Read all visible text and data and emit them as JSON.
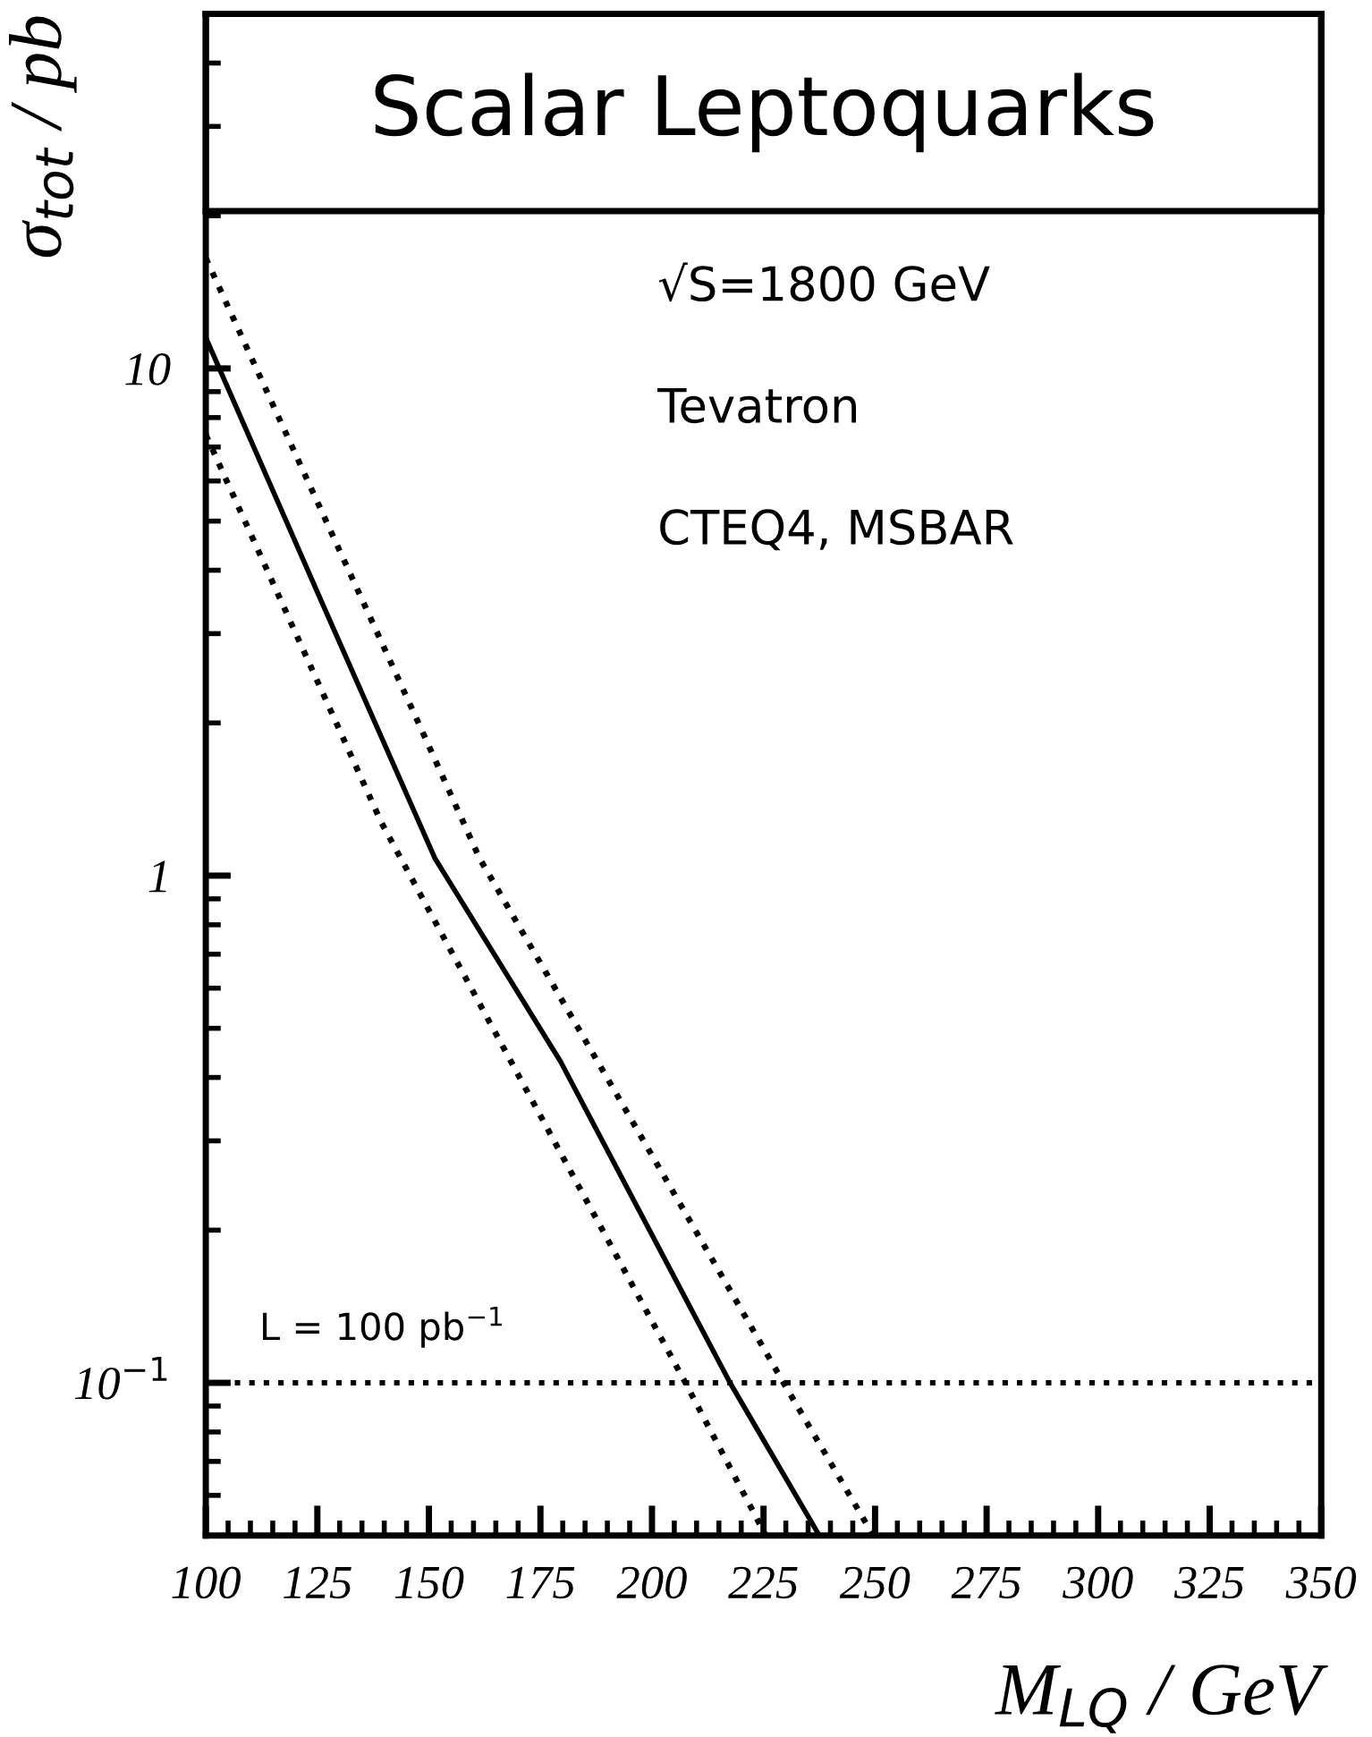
{
  "chart_data": {
    "type": "line",
    "title": "Scalar Leptoquarks",
    "xlabel": "M$_{LQ}$ / GeV",
    "ylabel": "σ$_{tot}$ / pb",
    "log": "y",
    "xlim": [
      100,
      350
    ],
    "ylim": [
      0.05,
      50
    ],
    "xticks": [
      100,
      {
        "value": 105,
        "label": null
      },
      {
        "value": 110,
        "label": null
      },
      {
        "value": 115,
        "label": null
      },
      {
        "value": 120,
        "label": null
      },
      125,
      {
        "value": 130,
        "label": null
      },
      {
        "value": 135,
        "label": null
      },
      {
        "value": 140,
        "label": null
      },
      {
        "value": 145,
        "label": null
      },
      150,
      {
        "value": 155,
        "label": null
      },
      {
        "value": 160,
        "label": null
      },
      {
        "value": 165,
        "label": null
      },
      {
        "value": 170,
        "label": null
      },
      175,
      {
        "value": 180,
        "label": null
      },
      {
        "value": 185,
        "label": null
      },
      {
        "value": 190,
        "label": null
      },
      {
        "value": 195,
        "label": null
      },
      200,
      {
        "value": 205,
        "label": null
      },
      {
        "value": 210,
        "label": null
      },
      {
        "value": 215,
        "label": null
      },
      {
        "value": 220,
        "label": null
      },
      225,
      {
        "value": 230,
        "label": null
      },
      {
        "value": 235,
        "label": null
      },
      {
        "value": 240,
        "label": null
      },
      {
        "value": 245,
        "label": null
      },
      250,
      {
        "value": 255,
        "label": null
      },
      {
        "value": 260,
        "label": null
      },
      {
        "value": 265,
        "label": null
      },
      {
        "value": 270,
        "label": null
      },
      275,
      {
        "value": 280,
        "label": null
      },
      {
        "value": 285,
        "label": null
      },
      {
        "value": 290,
        "label": null
      },
      {
        "value": 295,
        "label": null
      },
      300,
      {
        "value": 305,
        "label": null
      },
      {
        "value": 310,
        "label": null
      },
      {
        "value": 315,
        "label": null
      },
      {
        "value": 320,
        "label": null
      },
      325,
      {
        "value": 330,
        "label": null
      },
      {
        "value": 335,
        "label": null
      },
      {
        "value": 340,
        "label": null
      },
      {
        "value": 345,
        "label": null
      },
      350
    ],
    "yticks": [
      {
        "value": 0.06,
        "label": null
      },
      {
        "value": 0.07,
        "label": null
      },
      {
        "value": 0.08,
        "label": null
      },
      {
        "value": 0.09,
        "label": null
      },
      {
        "value": 0.1,
        "label": "10$^{−1}$"
      },
      {
        "value": 0.2,
        "label": null
      },
      {
        "value": 0.3,
        "label": null
      },
      {
        "value": 0.4,
        "label": null
      },
      {
        "value": 0.5,
        "label": null
      },
      {
        "value": 0.6,
        "label": null
      },
      {
        "value": 0.7,
        "label": null
      },
      {
        "value": 0.8,
        "label": null
      },
      {
        "value": 0.9,
        "label": null
      },
      1,
      {
        "value": 2,
        "label": null
      },
      {
        "value": 3,
        "label": null
      },
      {
        "value": 4,
        "label": null
      },
      {
        "value": 5,
        "label": null
      },
      {
        "value": 6,
        "label": null
      },
      {
        "value": 7,
        "label": null
      },
      {
        "value": 8,
        "label": null
      },
      {
        "value": 9,
        "label": null
      },
      10,
      {
        "value": 20,
        "label": null
      },
      {
        "value": 30,
        "label": null
      },
      {
        "value": 40,
        "label": null
      }
    ],
    "series": [
      {
        "color": "#000000",
        "line_style": "dotted",
        "x": [
          100,
          147,
          161.4,
          195.4,
          229.5,
          249.6
        ],
        "values": [
          16.5,
          2.06,
          1.08,
          0.33,
          0.1,
          0.05
        ]
      },
      {
        "color": "#000000",
        "line_style": "solid",
        "x": [
          100,
          125.5,
          151.4,
          179.5,
          217.5,
          237.5
        ],
        "values": [
          11.5,
          3.54,
          1.08,
          0.43,
          0.1,
          0.05
        ]
      },
      {
        "color": "#000000",
        "line_style": "dotted",
        "x": [
          100,
          139.4,
          168.4,
          207.5,
          225.5
        ],
        "values": [
          7.4,
          1.27,
          0.43,
          0.1,
          0.05
        ]
      }
    ],
    "ref_lines": [
      {
        "axis": "y",
        "value": 0.1,
        "label": "L = 100 pb$^{−1}$",
        "color": "#000000",
        "line_style": "dotted"
      }
    ],
    "annotations": [
      "√S=1800 GeV",
      "Tevatron",
      "CTEQ4, MSBAR"
    ],
    "legend": false
  }
}
